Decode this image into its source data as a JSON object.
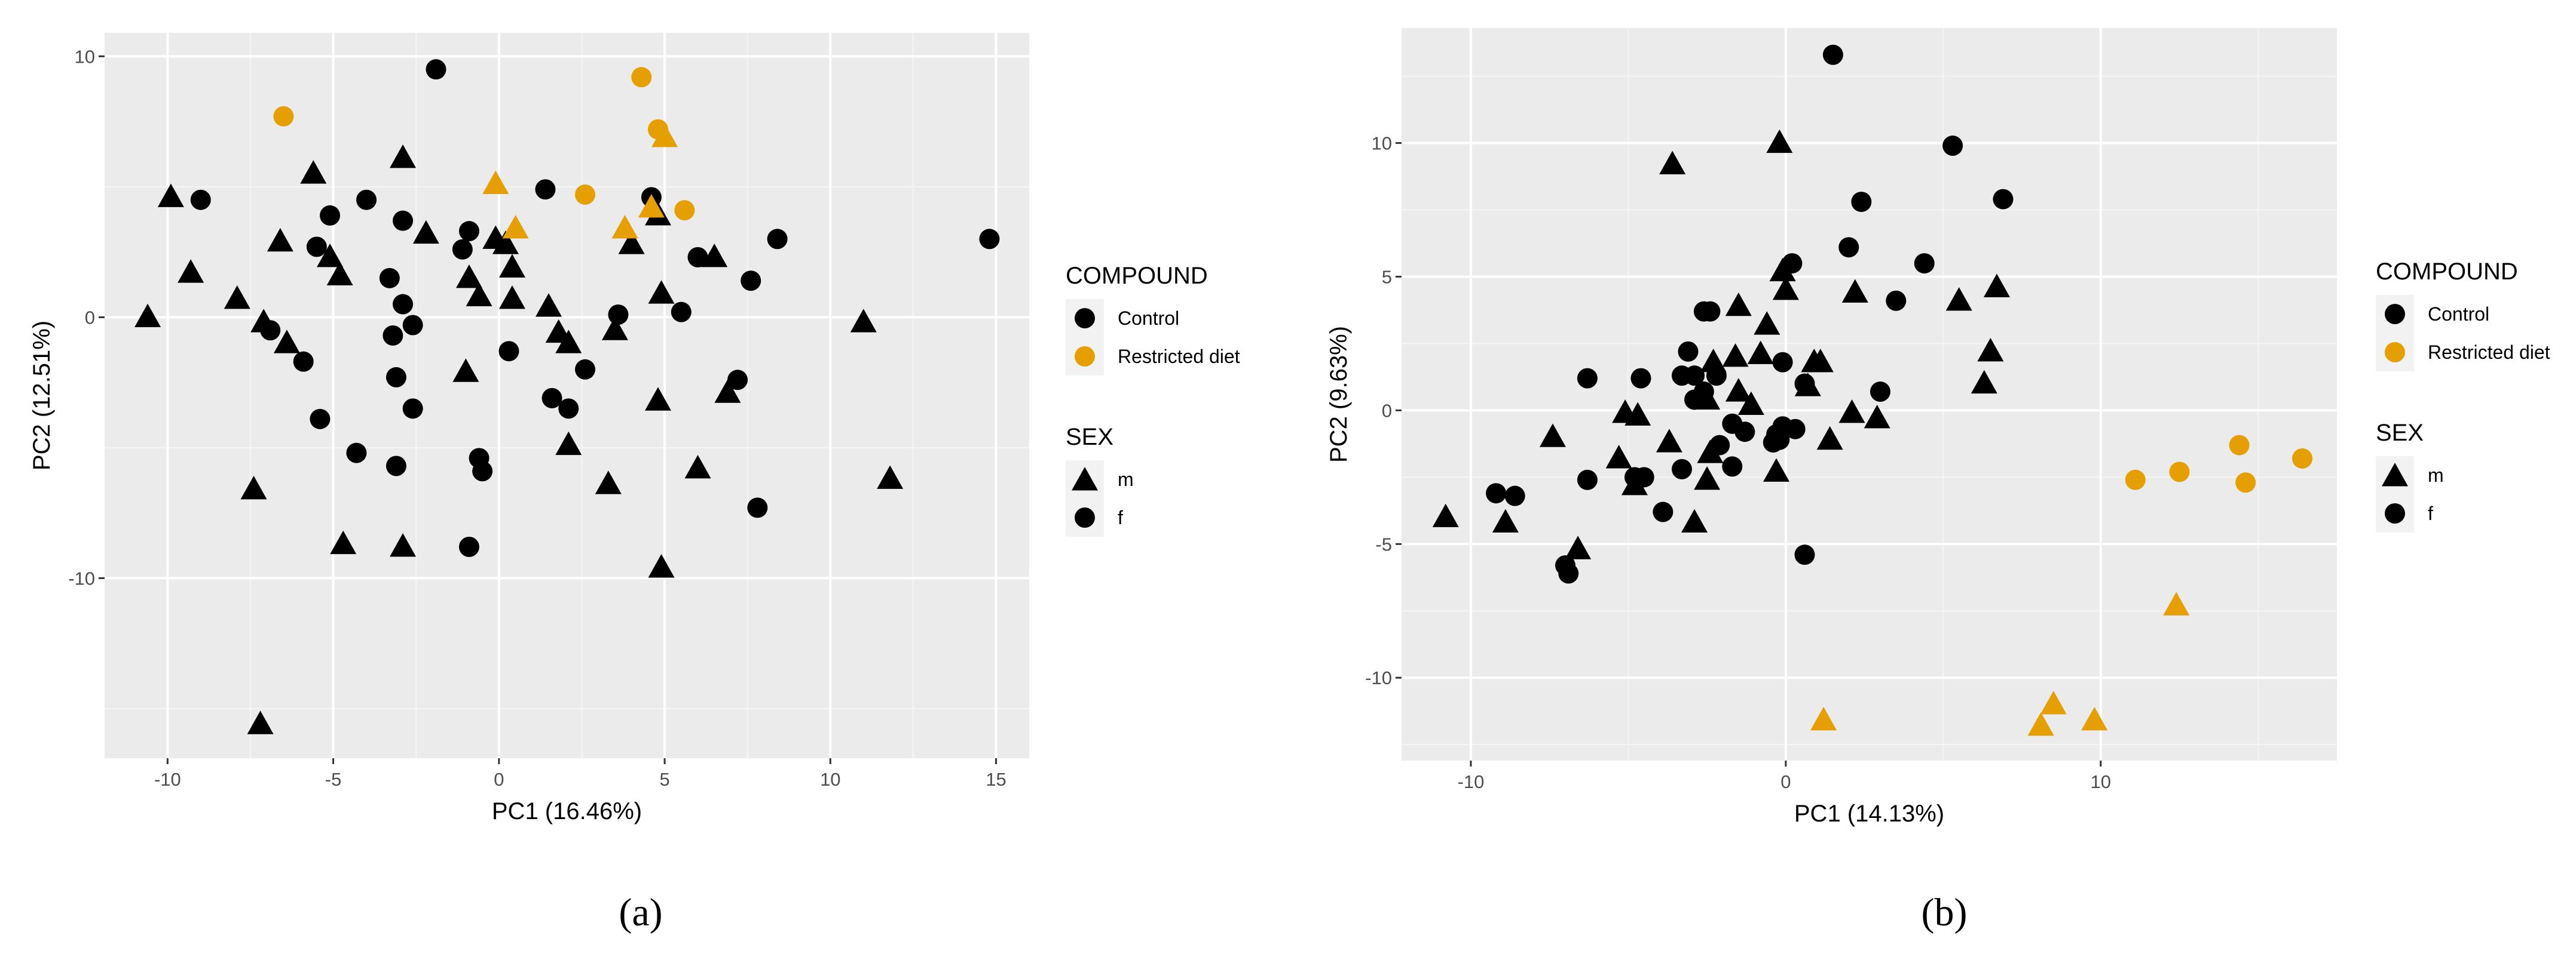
{
  "colors": {
    "panel_background": "#ebebeb",
    "grid_major": "#ffffff",
    "grid_minor": "#f5f5f5",
    "control": "#000000",
    "restricted_diet": "#e69f00",
    "legend_key_background": "#f2f2f2"
  },
  "chart_data": [
    {
      "type": "scatter",
      "panel_label": "(a)",
      "xlabel": "PC1 (16.46%)",
      "ylabel": "PC2 (12.51%)",
      "xlim": [
        -11.9,
        16.0
      ],
      "ylim": [
        -16.9,
        10.9
      ],
      "xticks": [
        -10,
        -5,
        0,
        5,
        10,
        15
      ],
      "yticks": [
        -10,
        0,
        10
      ],
      "xtick_labels": [
        "-10",
        "-5",
        "0",
        "5",
        "10",
        "15"
      ],
      "ytick_labels": [
        "-10",
        "0",
        "10"
      ],
      "legend": {
        "placement": "right",
        "compound_title": "COMPOUND",
        "compound_items": [
          {
            "label": "Control",
            "key": "control"
          },
          {
            "label": "Restricted diet",
            "key": "restricted_diet"
          }
        ],
        "sex_title": "SEX",
        "sex_items": [
          {
            "label": "m",
            "shape": "triangle"
          },
          {
            "label": "f",
            "shape": "circle"
          }
        ]
      },
      "series": [
        {
          "compound": "control",
          "sex": "f",
          "points": [
            [
              -1.9,
              9.5
            ],
            [
              -9.0,
              4.5
            ],
            [
              1.4,
              4.9
            ],
            [
              -5.1,
              3.9
            ],
            [
              -4.0,
              4.5
            ],
            [
              -2.9,
              3.7
            ],
            [
              -0.9,
              3.3
            ],
            [
              -1.1,
              2.6
            ],
            [
              -5.5,
              2.7
            ],
            [
              -3.3,
              1.5
            ],
            [
              -2.9,
              0.5
            ],
            [
              -2.6,
              -0.3
            ],
            [
              -3.2,
              -0.7
            ],
            [
              -6.9,
              -0.5
            ],
            [
              -5.9,
              -1.7
            ],
            [
              -3.1,
              -2.3
            ],
            [
              -2.6,
              -3.5
            ],
            [
              -5.4,
              -3.9
            ],
            [
              -4.3,
              -5.2
            ],
            [
              -3.1,
              -5.7
            ],
            [
              -0.6,
              -5.4
            ],
            [
              -0.5,
              -5.9
            ],
            [
              -0.9,
              -8.8
            ],
            [
              0.3,
              -1.3
            ],
            [
              1.6,
              -3.1
            ],
            [
              2.1,
              -3.5
            ],
            [
              2.6,
              -2.0
            ],
            [
              3.6,
              0.1
            ],
            [
              5.5,
              0.2
            ],
            [
              6.0,
              2.3
            ],
            [
              4.6,
              4.6
            ],
            [
              7.6,
              1.4
            ],
            [
              8.4,
              3.0
            ],
            [
              7.2,
              -2.4
            ],
            [
              7.8,
              -7.3
            ],
            [
              14.8,
              3.0
            ]
          ]
        },
        {
          "compound": "control",
          "sex": "m",
          "points": [
            [
              -10.6,
              0.0
            ],
            [
              -9.9,
              4.6
            ],
            [
              -9.3,
              1.7
            ],
            [
              -7.9,
              0.7
            ],
            [
              -7.1,
              -0.2
            ],
            [
              -6.6,
              2.9
            ],
            [
              -6.4,
              -1.0
            ],
            [
              -7.4,
              -6.6
            ],
            [
              -7.2,
              -15.6
            ],
            [
              -5.6,
              5.5
            ],
            [
              -5.1,
              2.3
            ],
            [
              -4.8,
              1.6
            ],
            [
              -4.7,
              -8.7
            ],
            [
              -2.9,
              6.1
            ],
            [
              -2.2,
              3.2
            ],
            [
              -2.9,
              -8.8
            ],
            [
              -1.0,
              -2.1
            ],
            [
              -0.9,
              1.5
            ],
            [
              -0.6,
              0.8
            ],
            [
              -0.1,
              3.0
            ],
            [
              0.2,
              2.8
            ],
            [
              0.4,
              1.9
            ],
            [
              0.4,
              0.7
            ],
            [
              1.5,
              0.4
            ],
            [
              1.8,
              -0.6
            ],
            [
              2.1,
              -1.0
            ],
            [
              2.1,
              -4.9
            ],
            [
              3.3,
              -6.4
            ],
            [
              3.5,
              -0.5
            ],
            [
              4.0,
              2.8
            ],
            [
              4.8,
              3.9
            ],
            [
              4.9,
              0.9
            ],
            [
              4.8,
              -3.2
            ],
            [
              4.9,
              -9.6
            ],
            [
              6.0,
              -5.8
            ],
            [
              6.5,
              2.3
            ],
            [
              6.9,
              -2.9
            ],
            [
              11.0,
              -0.2
            ],
            [
              11.8,
              -6.2
            ]
          ]
        },
        {
          "compound": "restricted_diet",
          "sex": "f",
          "points": [
            [
              -6.5,
              7.7
            ],
            [
              4.3,
              9.2
            ],
            [
              4.8,
              7.2
            ],
            [
              2.6,
              4.7
            ],
            [
              5.6,
              4.1
            ]
          ]
        },
        {
          "compound": "restricted_diet",
          "sex": "m",
          "points": [
            [
              -0.1,
              5.1
            ],
            [
              0.5,
              3.4
            ],
            [
              3.8,
              3.4
            ],
            [
              4.6,
              4.2
            ],
            [
              5.0,
              6.9
            ]
          ]
        }
      ]
    },
    {
      "type": "scatter",
      "panel_label": "(b)",
      "xlabel": "PC1 (14.13%)",
      "ylabel": "PC2 (9.63%)",
      "xlim": [
        -12.2,
        17.5
      ],
      "ylim": [
        -13.1,
        14.3
      ],
      "xticks": [
        -10,
        0,
        10
      ],
      "yticks": [
        -10,
        -5,
        0,
        5,
        10
      ],
      "xtick_labels": [
        "-10",
        "0",
        "10"
      ],
      "ytick_labels": [
        "-10",
        "-5",
        "0",
        "5",
        "10"
      ],
      "legend": {
        "placement": "right",
        "compound_title": "COMPOUND",
        "compound_items": [
          {
            "label": "Control",
            "key": "control"
          },
          {
            "label": "Restricted diet",
            "key": "restricted_diet"
          }
        ],
        "sex_title": "SEX",
        "sex_items": [
          {
            "label": "m",
            "shape": "triangle"
          },
          {
            "label": "f",
            "shape": "circle"
          }
        ]
      },
      "series": [
        {
          "compound": "control",
          "sex": "f",
          "points": [
            [
              1.5,
              13.3
            ],
            [
              5.3,
              9.9
            ],
            [
              6.9,
              7.9
            ],
            [
              2.4,
              7.8
            ],
            [
              2.0,
              6.1
            ],
            [
              0.2,
              5.5
            ],
            [
              4.4,
              5.5
            ],
            [
              3.5,
              4.1
            ],
            [
              -2.6,
              3.7
            ],
            [
              -2.4,
              3.7
            ],
            [
              -3.1,
              2.2
            ],
            [
              -3.3,
              1.3
            ],
            [
              -2.9,
              1.3
            ],
            [
              -6.3,
              1.2
            ],
            [
              -4.6,
              1.2
            ],
            [
              -2.2,
              1.3
            ],
            [
              -0.1,
              1.8
            ],
            [
              0.6,
              1.0
            ],
            [
              3.0,
              0.7
            ],
            [
              -2.6,
              0.7
            ],
            [
              -2.9,
              0.4
            ],
            [
              -1.7,
              -0.5
            ],
            [
              -0.1,
              -0.6
            ],
            [
              0.3,
              -0.7
            ],
            [
              -1.3,
              -0.8
            ],
            [
              -2.1,
              -1.3
            ],
            [
              -0.4,
              -1.2
            ],
            [
              -1.7,
              -2.1
            ],
            [
              -3.3,
              -2.2
            ],
            [
              -4.5,
              -2.5
            ],
            [
              -4.8,
              -2.5
            ],
            [
              -6.3,
              -2.6
            ],
            [
              -3.9,
              -3.8
            ],
            [
              -9.2,
              -3.1
            ],
            [
              -8.6,
              -3.2
            ],
            [
              -7.0,
              -5.8
            ],
            [
              -6.9,
              -6.1
            ],
            [
              0.6,
              -5.4
            ],
            [
              -0.3,
              -0.9
            ],
            [
              -0.2,
              -1.1
            ]
          ]
        },
        {
          "compound": "control",
          "sex": "m",
          "points": [
            [
              -0.2,
              10.0
            ],
            [
              -3.6,
              9.2
            ],
            [
              -0.1,
              5.2
            ],
            [
              0.0,
              4.5
            ],
            [
              2.2,
              4.4
            ],
            [
              5.5,
              4.1
            ],
            [
              6.7,
              4.6
            ],
            [
              -1.5,
              3.9
            ],
            [
              -0.6,
              3.2
            ],
            [
              -1.6,
              2.0
            ],
            [
              -0.8,
              2.1
            ],
            [
              -2.3,
              1.8
            ],
            [
              0.9,
              1.8
            ],
            [
              1.1,
              1.8
            ],
            [
              0.7,
              0.9
            ],
            [
              -1.5,
              0.7
            ],
            [
              -2.5,
              0.4
            ],
            [
              -1.1,
              0.2
            ],
            [
              -5.1,
              -0.1
            ],
            [
              -4.7,
              -0.2
            ],
            [
              -3.7,
              -1.2
            ],
            [
              -7.4,
              -1.0
            ],
            [
              -5.3,
              -1.8
            ],
            [
              -2.4,
              -1.6
            ],
            [
              1.4,
              -1.1
            ],
            [
              2.1,
              -0.1
            ],
            [
              2.9,
              -0.3
            ],
            [
              -2.5,
              -2.6
            ],
            [
              -4.8,
              -2.8
            ],
            [
              -0.3,
              -2.3
            ],
            [
              -2.9,
              -4.2
            ],
            [
              -6.6,
              -5.2
            ],
            [
              -8.9,
              -4.2
            ],
            [
              -10.8,
              -4.0
            ],
            [
              6.3,
              1.0
            ],
            [
              6.5,
              2.2
            ]
          ]
        },
        {
          "compound": "restricted_diet",
          "sex": "f",
          "points": [
            [
              11.1,
              -2.6
            ],
            [
              12.5,
              -2.3
            ],
            [
              14.4,
              -1.3
            ],
            [
              14.6,
              -2.7
            ],
            [
              16.4,
              -1.8
            ]
          ]
        },
        {
          "compound": "restricted_diet",
          "sex": "m",
          "points": [
            [
              12.4,
              -7.3
            ],
            [
              1.2,
              -11.6
            ],
            [
              8.1,
              -11.8
            ],
            [
              8.5,
              -11.0
            ],
            [
              9.8,
              -11.6
            ]
          ]
        }
      ]
    }
  ]
}
